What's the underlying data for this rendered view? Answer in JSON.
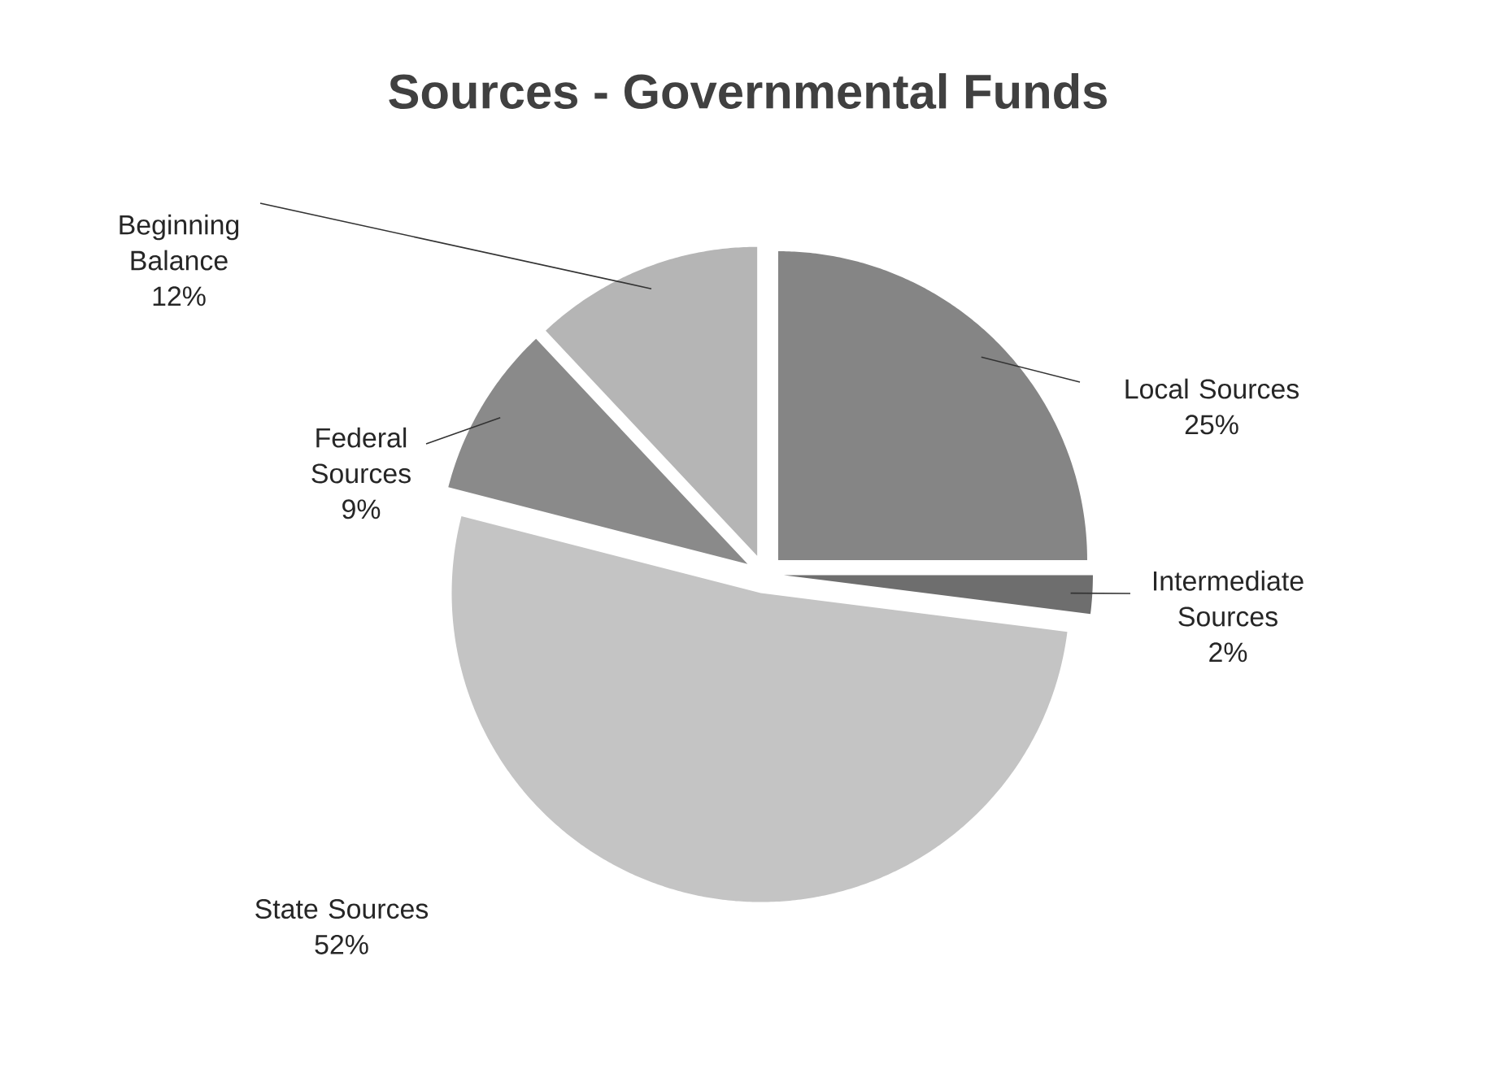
{
  "chart_data": {
    "type": "pie",
    "title": "Sources - Governmental Funds",
    "categories": [
      "Local Sources",
      "Intermediate Sources",
      "State Sources",
      "Federal Sources",
      "Beginning Balance"
    ],
    "values": [
      25,
      2,
      52,
      9,
      12
    ],
    "value_labels": [
      "25%",
      "2%",
      "52%",
      "9%",
      "12%"
    ],
    "colors": [
      "#858585",
      "#6e6e6e",
      "#c4c4c4",
      "#8a8a8a",
      "#b5b5b5"
    ],
    "legend": false
  }
}
